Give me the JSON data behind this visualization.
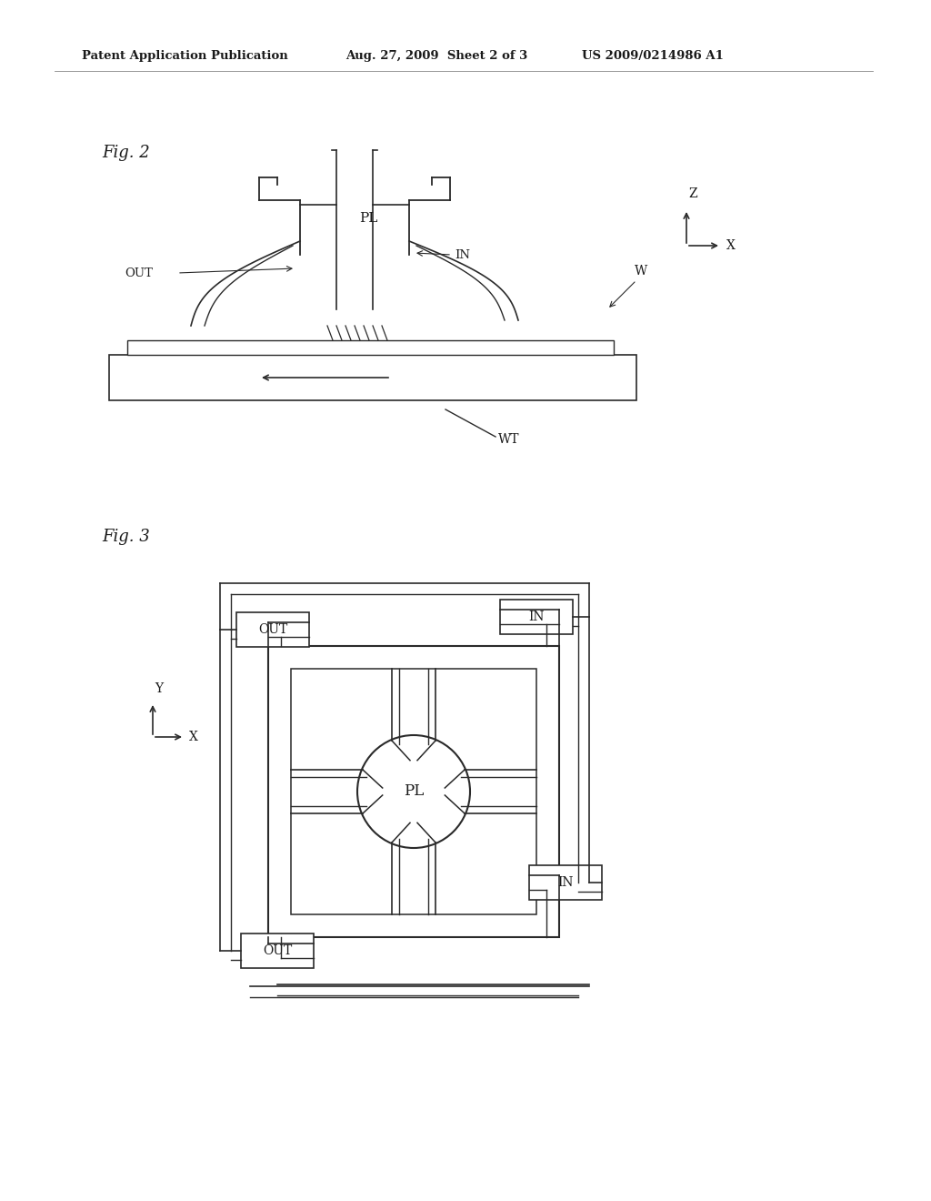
{
  "bg_color": "#ffffff",
  "header_left": "Patent Application Publication",
  "header_mid": "Aug. 27, 2009  Sheet 2 of 3",
  "header_right": "US 2009/0214986 A1",
  "fig2_label": "Fig. 2",
  "fig3_label": "Fig. 3",
  "line_color": "#2a2a2a",
  "text_color": "#1a1a1a"
}
